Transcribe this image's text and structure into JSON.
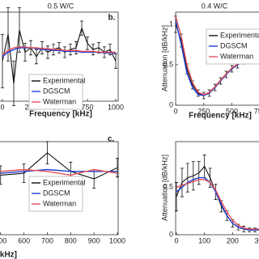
{
  "chart_data": [
    {
      "type": "line",
      "title": "0.5 W/C",
      "panel_label": "b.",
      "x_label": "Frequency [kHz]",
      "x": [
        0,
        50,
        100,
        150,
        200,
        250,
        300,
        350,
        400,
        450,
        500,
        550,
        600,
        650,
        700,
        750,
        800,
        850,
        900,
        950,
        1000
      ],
      "xlim": [
        0,
        1000
      ],
      "xticks": [
        0,
        250,
        500,
        750,
        1000
      ],
      "ylim": [
        0,
        1
      ],
      "legend": true,
      "series": [
        {
          "name": "Experimental",
          "color": "#111111",
          "values": [
            0.45,
            0.75,
            0.2,
            0.8,
            0.55,
            0.6,
            0.5,
            0.6,
            0.55,
            0.58,
            0.6,
            0.55,
            0.58,
            0.6,
            0.82,
            0.65,
            0.58,
            0.6,
            0.55,
            0.58,
            0.45
          ],
          "errors": [
            0.3,
            0.3,
            0.25,
            0.25,
            0.1,
            0.08,
            0.08,
            0.07,
            0.07,
            0.06,
            0.06,
            0.06,
            0.06,
            0.07,
            0.08,
            0.07,
            0.06,
            0.06,
            0.06,
            0.06,
            0.08
          ]
        },
        {
          "name": "DGSCM",
          "color": "#1f3fd0",
          "values": [
            0.5,
            0.55,
            0.58,
            0.6,
            0.6,
            0.6,
            0.59,
            0.58,
            0.58,
            0.57,
            0.57,
            0.56,
            0.56,
            0.56,
            0.55,
            0.55,
            0.55,
            0.55,
            0.54,
            0.54,
            0.54
          ]
        },
        {
          "name": "Waterman",
          "color": "#e8505a",
          "values": [
            0.52,
            0.57,
            0.6,
            0.61,
            0.61,
            0.6,
            0.6,
            0.59,
            0.59,
            0.58,
            0.58,
            0.57,
            0.57,
            0.57,
            0.56,
            0.56,
            0.56,
            0.55,
            0.55,
            0.55,
            0.55
          ]
        }
      ]
    },
    {
      "type": "line",
      "title": "0.4 W/C",
      "x_label": "Frequency [kHz]",
      "y_label": "Attenuation [dB/kHz]",
      "x": [
        0,
        50,
        100,
        150,
        200,
        250,
        300,
        350,
        400,
        450,
        500,
        550,
        600,
        650,
        700,
        750,
        800,
        850,
        900,
        950,
        1000
      ],
      "xlim": [
        0,
        1000
      ],
      "xticks": [
        0,
        250,
        500,
        750,
        1000
      ],
      "ylim": [
        0,
        1.15
      ],
      "yticks": [
        0,
        0.5,
        1
      ],
      "legend": true,
      "series": [
        {
          "name": "Experimental",
          "color": "#111111",
          "values": [
            1.0,
            0.8,
            0.45,
            0.25,
            0.15,
            0.12,
            0.15,
            0.22,
            0.3,
            0.38,
            0.45,
            0.5,
            0.55,
            0.58,
            0.6,
            0.62,
            0.65,
            0.67,
            0.68,
            0.7,
            0.72
          ],
          "errors": [
            0.1,
            0.08,
            0.06,
            0.05,
            0.04,
            0.04,
            0.04,
            0.04,
            0.04,
            0.04,
            0.04,
            0.04,
            0.04,
            0.05,
            0.05,
            0.05,
            0.05,
            0.05,
            0.05,
            0.05,
            0.05
          ]
        },
        {
          "name": "DGSCM",
          "color": "#1f3fd0",
          "values": [
            1.05,
            0.75,
            0.4,
            0.22,
            0.13,
            0.12,
            0.15,
            0.22,
            0.3,
            0.38,
            0.45,
            0.5,
            0.54,
            0.58,
            0.61,
            0.64,
            0.66,
            0.68,
            0.7,
            0.71,
            0.72
          ]
        },
        {
          "name": "Waterman",
          "color": "#e8505a",
          "values": [
            1.1,
            0.85,
            0.5,
            0.28,
            0.16,
            0.13,
            0.16,
            0.23,
            0.31,
            0.39,
            0.46,
            0.51,
            0.55,
            0.58,
            0.61,
            0.63,
            0.65,
            0.67,
            0.69,
            0.7,
            0.71
          ]
        }
      ]
    },
    {
      "type": "line",
      "panel_label": "c.",
      "x_label": "Frequency [kHz]",
      "x": [
        500,
        600,
        700,
        800,
        900,
        1000
      ],
      "xlim": [
        480,
        1000
      ],
      "xticks": [
        500,
        600,
        700,
        800,
        900,
        1000
      ],
      "ylim": [
        0.3,
        0.8
      ],
      "legend": true,
      "series": [
        {
          "name": "Experimental",
          "color": "#111111",
          "values": [
            0.62,
            0.63,
            0.74,
            0.64,
            0.6,
            0.66
          ],
          "errors": [
            0.05,
            0.05,
            0.06,
            0.05,
            0.05,
            0.05
          ]
        },
        {
          "name": "DGSCM",
          "color": "#1f3fd0",
          "values": [
            0.63,
            0.64,
            0.65,
            0.64,
            0.64,
            0.64
          ]
        },
        {
          "name": "Waterman",
          "color": "#e8505a",
          "values": [
            0.64,
            0.65,
            0.64,
            0.62,
            0.65,
            0.63
          ]
        }
      ]
    },
    {
      "type": "line",
      "y_label": "Attenuation [dB/kHz]",
      "x": [
        0,
        20,
        40,
        60,
        80,
        100,
        120,
        140,
        160,
        180,
        200,
        220,
        240,
        260,
        280,
        300
      ],
      "xlim": [
        0,
        300
      ],
      "xticks": [
        0,
        100,
        200,
        300
      ],
      "ylim": [
        0,
        0.98
      ],
      "yticks": [
        0,
        0.5
      ],
      "legend": false,
      "series": [
        {
          "name": "Experimental",
          "color": "#111111",
          "values": [
            0.4,
            0.55,
            0.6,
            0.62,
            0.65,
            0.72,
            0.6,
            0.45,
            0.3,
            0.2,
            0.12,
            0.08,
            0.06,
            0.05,
            0.05,
            0.06
          ],
          "errors": [
            0.15,
            0.15,
            0.15,
            0.15,
            0.12,
            0.12,
            0.1,
            0.08,
            0.06,
            0.05,
            0.04,
            0.03,
            0.03,
            0.02,
            0.02,
            0.02
          ]
        },
        {
          "name": "DGSCM",
          "color": "#1f3fd0",
          "values": [
            0.45,
            0.5,
            0.55,
            0.58,
            0.6,
            0.6,
            0.55,
            0.45,
            0.32,
            0.2,
            0.12,
            0.08,
            0.06,
            0.05,
            0.05,
            0.05
          ]
        },
        {
          "name": "Waterman",
          "color": "#e8505a",
          "values": [
            0.5,
            0.52,
            0.54,
            0.56,
            0.58,
            0.58,
            0.55,
            0.47,
            0.35,
            0.24,
            0.15,
            0.1,
            0.07,
            0.06,
            0.06,
            0.06
          ]
        }
      ]
    }
  ]
}
